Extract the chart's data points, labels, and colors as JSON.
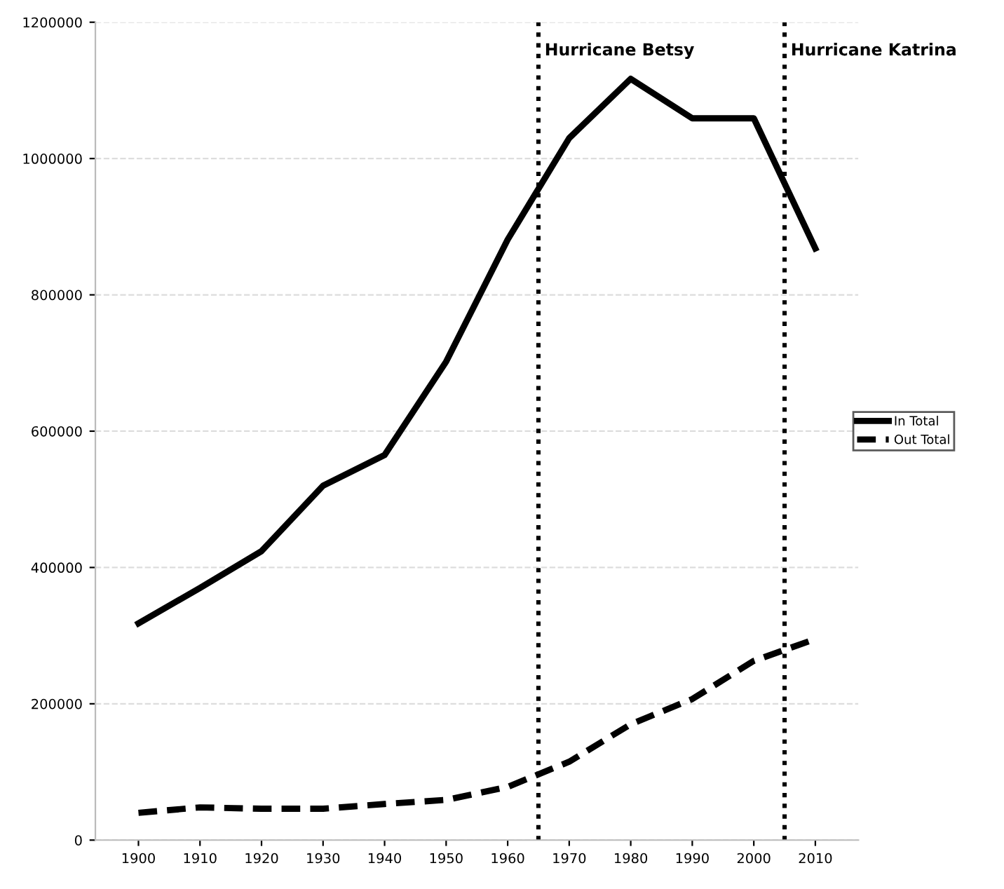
{
  "chart_data": {
    "type": "line",
    "x": [
      1900,
      1910,
      1920,
      1930,
      1940,
      1950,
      1960,
      1970,
      1980,
      1990,
      2000,
      2010
    ],
    "series": [
      {
        "name": "In Total",
        "color": "#000000",
        "line_style": "solid",
        "values": [
          318000,
          370000,
          424000,
          520000,
          565000,
          702000,
          881000,
          1030000,
          1117000,
          1059000,
          1059000,
          868000
        ]
      },
      {
        "name": "Out Total",
        "color": "#000000",
        "line_style": "dashed",
        "values": [
          40000,
          48000,
          46000,
          46000,
          53000,
          59000,
          78000,
          115000,
          170000,
          207000,
          263000,
          295000
        ]
      }
    ],
    "xlim": [
      1893,
      2017
    ],
    "ylim": [
      0,
      1200000
    ],
    "xticks": [
      1900,
      1910,
      1920,
      1930,
      1940,
      1950,
      1960,
      1970,
      1980,
      1990,
      2000,
      2010
    ],
    "yticks": [
      0,
      200000,
      400000,
      600000,
      800000,
      1000000,
      1200000
    ],
    "grid": "y",
    "legend": "right",
    "marker": "none",
    "ref_lines": [
      {
        "axis": "x",
        "value": 1965,
        "label": "Hurricane Betsy",
        "color": "#000000",
        "line_style": "dotted"
      },
      {
        "axis": "x",
        "value": 2005,
        "label": "Hurricane Katrina",
        "color": "#000000",
        "line_style": "dotted"
      }
    ]
  }
}
